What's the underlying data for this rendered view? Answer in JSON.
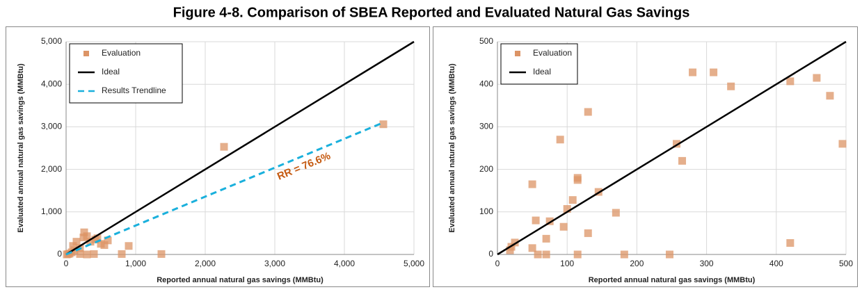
{
  "title": "Figure 4-8. Comparison of SBEA Reported and Evaluated Natural Gas Savings",
  "chart_data": [
    {
      "type": "scatter",
      "xlabel": "Reported annual natural gas savings (MMBtu)",
      "ylabel": "Evaluated annual natural gas savings (MMBtu)",
      "xlim": [
        0,
        5000
      ],
      "ylim": [
        0,
        5000
      ],
      "xticks": [
        0,
        {
          "value": 1000,
          "label": "1,000"
        },
        {
          "value": 2000,
          "label": "2,000"
        },
        {
          "value": 3000,
          "label": "3,000"
        },
        {
          "value": 4000,
          "label": "4,000"
        },
        {
          "value": 5000,
          "label": "5,000"
        }
      ],
      "yticks": [
        0,
        {
          "value": 1000,
          "label": "1,000"
        },
        {
          "value": 2000,
          "label": "2,000"
        },
        {
          "value": 3000,
          "label": "3,000"
        },
        {
          "value": 4000,
          "label": "4,000"
        },
        {
          "value": 5000,
          "label": "5,000"
        }
      ],
      "grid": true,
      "legend": "upper left",
      "annotation": "RR = 76.6%",
      "series": [
        {
          "name": "Evaluation",
          "color": "#dc9466",
          "mode": "markers",
          "x": [
            2270,
            4560,
            900,
            1370,
            800,
            600,
            550,
            500,
            450,
            420,
            400,
            350,
            300,
            260,
            250,
            200,
            150,
            120,
            100,
            80,
            50,
            30,
            10,
            200,
            300
          ],
          "values": [
            2530,
            3060,
            200,
            10,
            10,
            330,
            220,
            250,
            380,
            350,
            10,
            300,
            430,
            520,
            400,
            150,
            300,
            100,
            200,
            50,
            20,
            10,
            0,
            10,
            0
          ]
        },
        {
          "name": "Ideal",
          "color": "#000000",
          "mode": "line",
          "x": [
            0,
            5000
          ],
          "values": [
            0,
            5000
          ]
        },
        {
          "name": "Results Trendline",
          "color": "#1ab0dc",
          "mode": "line",
          "dash": true,
          "x": [
            0,
            4560
          ],
          "values": [
            0,
            3100
          ]
        }
      ]
    },
    {
      "type": "scatter",
      "xlabel": "Reported annual natural gas savings (MMBtu)",
      "ylabel": "Evaluated annual natural gas savings (MMBtu)",
      "xlim": [
        0,
        500
      ],
      "ylim": [
        0,
        500
      ],
      "xticks": [
        0,
        100,
        200,
        300,
        400,
        500
      ],
      "yticks": [
        0,
        100,
        200,
        300,
        400,
        500
      ],
      "grid": true,
      "legend": "upper left",
      "series": [
        {
          "name": "Evaluation",
          "color": "#dc9466",
          "mode": "markers",
          "x": [
            18,
            20,
            25,
            50,
            50,
            55,
            58,
            70,
            70,
            75,
            90,
            95,
            100,
            108,
            115,
            115,
            115,
            130,
            130,
            145,
            170,
            182,
            247,
            257,
            265,
            280,
            310,
            335,
            420,
            420,
            458,
            477,
            495
          ],
          "values": [
            10,
            18,
            28,
            165,
            15,
            80,
            0,
            37,
            0,
            78,
            270,
            65,
            107,
            128,
            180,
            175,
            0,
            335,
            50,
            147,
            98,
            0,
            0,
            260,
            220,
            428,
            428,
            395,
            407,
            27,
            415,
            373,
            260
          ]
        },
        {
          "name": "Ideal",
          "color": "#000000",
          "mode": "line",
          "x": [
            0,
            500
          ],
          "values": [
            0,
            500
          ]
        }
      ]
    }
  ]
}
